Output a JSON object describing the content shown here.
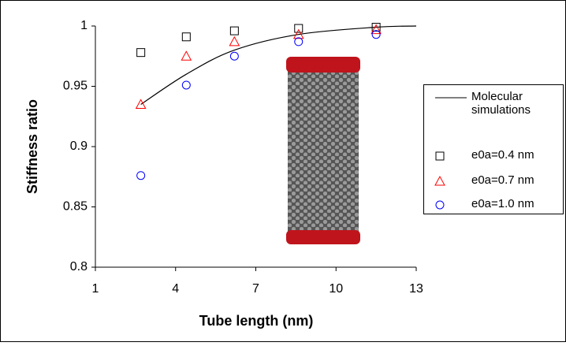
{
  "chart_data": {
    "type": "scatter",
    "xlabel": "Tube length (nm)",
    "ylabel": "Stiffness ratio",
    "xlim": [
      1,
      13
    ],
    "xticks": [
      1,
      4,
      7,
      10,
      13
    ],
    "ylim": [
      0.8,
      1
    ],
    "yticks": [
      0.8,
      0.85,
      0.9,
      0.95,
      1
    ],
    "grid": false,
    "series": [
      {
        "name": "Molecular simulations",
        "kind": "line",
        "color": "#000000",
        "x": [
          2.7,
          4.4,
          6.2,
          8.6,
          11.5,
          13
        ],
        "values": [
          0.935,
          0.96,
          0.98,
          0.993,
          0.999,
          1
        ]
      },
      {
        "name": "e0a=0.4 nm",
        "kind": "square",
        "color": "#000000",
        "x": [
          2.7,
          4.4,
          6.2,
          8.6,
          11.5
        ],
        "values": [
          0.978,
          0.991,
          0.996,
          0.998,
          0.999
        ]
      },
      {
        "name": "e0a=0.7 nm",
        "kind": "triangle",
        "color": "#ff0000",
        "x": [
          2.7,
          4.4,
          6.2,
          8.6,
          11.5
        ],
        "values": [
          0.935,
          0.975,
          0.987,
          0.993,
          0.997
        ]
      },
      {
        "name": "e0a=1.0 nm",
        "kind": "circle",
        "color": "#0000ff",
        "x": [
          2.7,
          4.4,
          6.2,
          8.6,
          11.5
        ],
        "values": [
          0.876,
          0.951,
          0.975,
          0.987,
          0.993
        ]
      }
    ]
  }
}
